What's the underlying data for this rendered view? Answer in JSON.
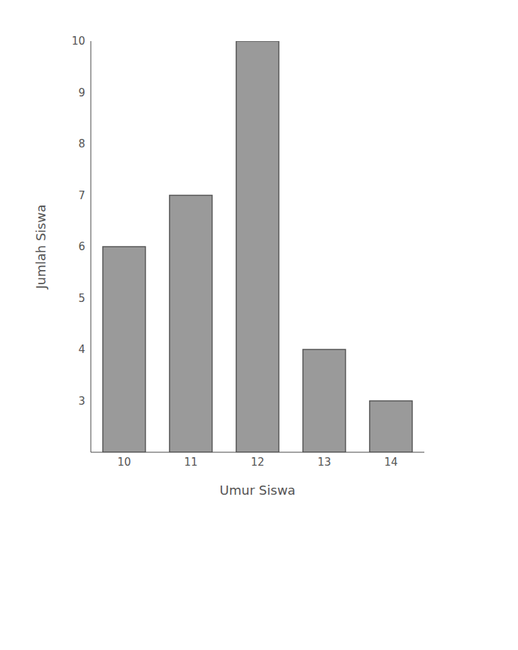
{
  "chart_data": {
    "type": "bar",
    "categories": [
      "10",
      "11",
      "12",
      "13",
      "14"
    ],
    "values": [
      6,
      7,
      10,
      4,
      3
    ],
    "color": "#9a9a9a",
    "x_label": "Umur Siswa",
    "y_label": "Jumlah Siswa",
    "ylim": [
      2,
      10
    ],
    "yticks": [
      3,
      4,
      5,
      6,
      7,
      8,
      9,
      10
    ],
    "grid": false
  }
}
